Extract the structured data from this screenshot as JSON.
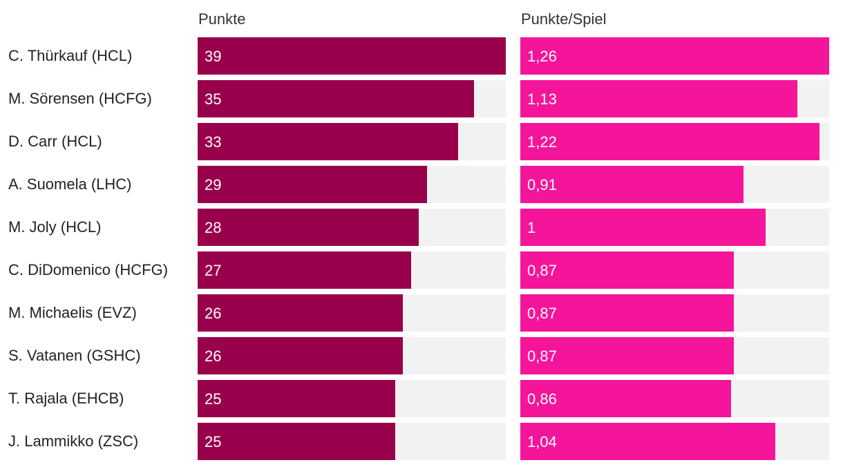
{
  "chart_data": {
    "type": "bar",
    "orientation": "horizontal",
    "categories": [
      "C. Thürkauf (HCL)",
      "M. Sörensen (HCFG)",
      "D. Carr (HCL)",
      "A. Suomela (LHC)",
      "M. Joly (HCL)",
      "C. DiDomenico (HCFG)",
      "M. Michaelis (EVZ)",
      "S. Vatanen (GSHC)",
      "T. Rajala (EHCB)",
      "J. Lammikko (ZSC)"
    ],
    "series": [
      {
        "name": "Punkte",
        "color": "#99004c",
        "max": 39,
        "values": [
          39,
          35,
          33,
          29,
          28,
          27,
          26,
          26,
          25,
          25
        ],
        "labels": [
          "39",
          "35",
          "33",
          "29",
          "28",
          "27",
          "26",
          "26",
          "25",
          "25"
        ]
      },
      {
        "name": "Punkte/Spiel",
        "color": "#f5159a",
        "max": 1.26,
        "values": [
          1.26,
          1.13,
          1.22,
          0.91,
          1,
          0.87,
          0.87,
          0.87,
          0.86,
          1.04
        ],
        "labels": [
          "1,26",
          "1,13",
          "1,22",
          "0,91",
          "1",
          "0,87",
          "0,87",
          "0,87",
          "0,86",
          "1,04"
        ]
      }
    ],
    "track_color": "#f2f2f2"
  }
}
